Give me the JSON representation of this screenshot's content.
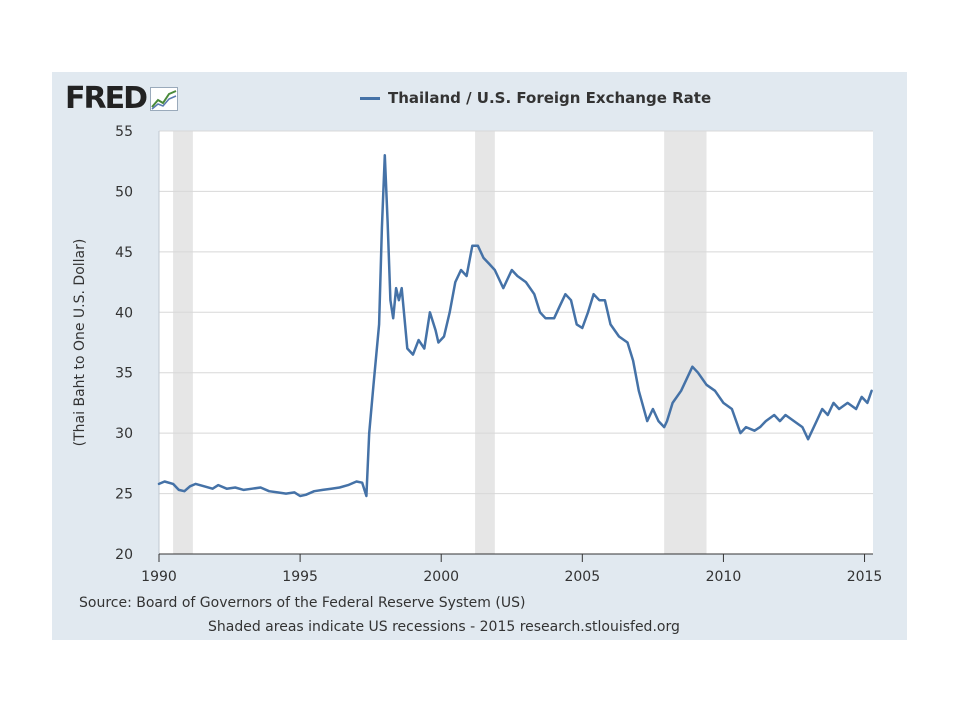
{
  "logo": {
    "text": "FRED",
    "icon": "line-chart-icon"
  },
  "footer": {
    "source": "Source: Board of Governors of the Federal Reserve System (US)",
    "note": "Shaded areas indicate US recessions - 2015 research.stlouisfed.org"
  },
  "colors": {
    "line": "#4572a7",
    "recession": "#e6e6e6",
    "panel": "#e1e9f0",
    "grid": "#d8d8d8"
  },
  "chart_data": {
    "type": "line",
    "title": "",
    "xlabel": "",
    "ylabel": "(Thai Baht to One U.S. Dollar)",
    "xlim": [
      1990,
      2015.3
    ],
    "ylim": [
      20,
      55
    ],
    "x_ticks": [
      1990,
      1995,
      2000,
      2005,
      2010,
      2015
    ],
    "y_ticks": [
      20,
      25,
      30,
      35,
      40,
      45,
      50,
      55
    ],
    "grid": true,
    "legend_position": "top-center",
    "recessions": [
      [
        1990.5,
        1991.2
      ],
      [
        2001.2,
        2001.9
      ],
      [
        2007.9,
        2009.4
      ]
    ],
    "series": [
      {
        "name": "Thailand / U.S. Foreign Exchange Rate",
        "x": [
          1990.0,
          1990.2,
          1990.5,
          1990.7,
          1990.9,
          1991.1,
          1991.3,
          1991.6,
          1991.9,
          1992.1,
          1992.4,
          1992.7,
          1993.0,
          1993.3,
          1993.6,
          1993.9,
          1994.2,
          1994.5,
          1994.8,
          1995.0,
          1995.2,
          1995.5,
          1995.8,
          1996.1,
          1996.4,
          1996.7,
          1997.0,
          1997.2,
          1997.35,
          1997.45,
          1997.6,
          1997.8,
          1997.9,
          1998.0,
          1998.1,
          1998.2,
          1998.3,
          1998.4,
          1998.5,
          1998.6,
          1998.7,
          1998.8,
          1999.0,
          1999.2,
          1999.4,
          1999.6,
          1999.8,
          1999.9,
          2000.1,
          2000.3,
          2000.5,
          2000.7,
          2000.9,
          2001.1,
          2001.3,
          2001.5,
          2001.7,
          2001.9,
          2002.2,
          2002.5,
          2002.7,
          2003.0,
          2003.3,
          2003.5,
          2003.7,
          2004.0,
          2004.2,
          2004.4,
          2004.6,
          2004.8,
          2005.0,
          2005.2,
          2005.4,
          2005.6,
          2005.8,
          2006.0,
          2006.3,
          2006.6,
          2006.8,
          2007.0,
          2007.3,
          2007.5,
          2007.7,
          2007.9,
          2008.0,
          2008.2,
          2008.5,
          2008.8,
          2008.9,
          2009.1,
          2009.4,
          2009.7,
          2010.0,
          2010.3,
          2010.6,
          2010.8,
          2011.1,
          2011.3,
          2011.5,
          2011.8,
          2012.0,
          2012.2,
          2012.5,
          2012.8,
          2013.0,
          2013.3,
          2013.5,
          2013.7,
          2013.9,
          2014.1,
          2014.4,
          2014.7,
          2014.9,
          2015.1,
          2015.25
        ],
        "values": [
          25.8,
          26.0,
          25.8,
          25.3,
          25.2,
          25.6,
          25.8,
          25.6,
          25.4,
          25.7,
          25.4,
          25.5,
          25.3,
          25.4,
          25.5,
          25.2,
          25.1,
          25.0,
          25.1,
          24.8,
          24.9,
          25.2,
          25.3,
          25.4,
          25.5,
          25.7,
          26.0,
          25.9,
          24.8,
          30.0,
          34.0,
          39.0,
          47.0,
          53.0,
          47.5,
          41.0,
          39.5,
          42.0,
          41.0,
          42.0,
          39.5,
          37.0,
          36.5,
          37.7,
          37.0,
          40.0,
          38.5,
          37.5,
          38.0,
          40.0,
          42.5,
          43.5,
          43.0,
          45.5,
          45.5,
          44.5,
          44.0,
          43.5,
          42.0,
          43.5,
          43.0,
          42.5,
          41.5,
          40.0,
          39.5,
          39.5,
          40.5,
          41.5,
          41.0,
          39.0,
          38.7,
          40.0,
          41.5,
          41.0,
          41.0,
          39.0,
          38.0,
          37.5,
          36.0,
          33.5,
          31.0,
          32.0,
          31.0,
          30.5,
          31.0,
          32.5,
          33.5,
          35.0,
          35.5,
          35.0,
          34.0,
          33.5,
          32.5,
          32.0,
          30.0,
          30.5,
          30.2,
          30.5,
          31.0,
          31.5,
          31.0,
          31.5,
          31.0,
          30.5,
          29.5,
          31.0,
          32.0,
          31.5,
          32.5,
          32.0,
          32.5,
          32.0,
          33.0,
          32.5,
          33.5
        ]
      }
    ]
  }
}
